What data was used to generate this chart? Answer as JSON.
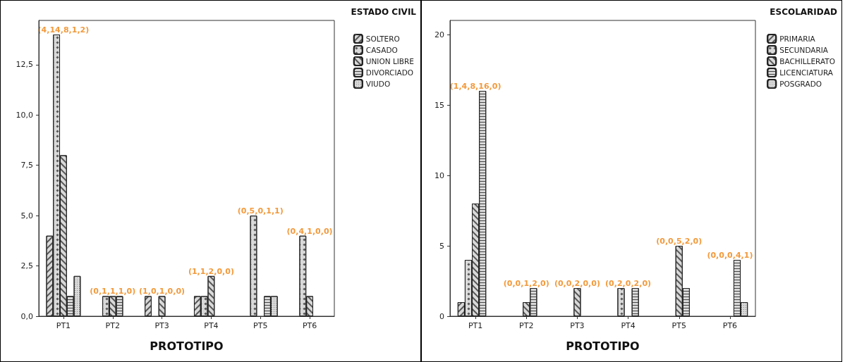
{
  "chart_data": [
    {
      "type": "bar",
      "xlabel": "PROTOTIPO",
      "legend_title": "ESTADO CIVIL",
      "legend": "top right",
      "grid": false,
      "categories": [
        "PT1",
        "PT2",
        "PT3",
        "PT4",
        "PT5",
        "PT6"
      ],
      "ylim": [
        0,
        14.7
      ],
      "yticks": [
        {
          "value": 0,
          "label": "0,0"
        },
        {
          "value": 2.5,
          "label": "2,5"
        },
        {
          "value": 5,
          "label": "5,0"
        },
        {
          "value": 7.5,
          "label": "7,5"
        },
        {
          "value": 10,
          "label": "10,0"
        },
        {
          "value": 12.5,
          "label": "12,5"
        }
      ],
      "series": [
        {
          "name": "SOLTERO",
          "color": "#d9d9d9",
          "values": [
            4,
            0,
            1,
            1,
            0,
            0
          ]
        },
        {
          "name": "CASADO",
          "color": "#d9d9d9",
          "values": [
            14,
            1,
            0,
            1,
            5,
            4
          ]
        },
        {
          "name": "UNION LIBRE",
          "color": "#d9d9d9",
          "values": [
            8,
            1,
            1,
            2,
            0,
            1
          ]
        },
        {
          "name": "DIVORCIADO",
          "color": "#d9d9d9",
          "values": [
            1,
            1,
            0,
            0,
            1,
            0
          ]
        },
        {
          "name": "VIUDO",
          "color": "#d9d9d9",
          "values": [
            2,
            0,
            0,
            0,
            1,
            0
          ]
        }
      ],
      "annotations": [
        "(4,14,8,1,2)",
        "(0,1,1,1,0)",
        "(1,0,1,0,0)",
        "(1,1,2,0,0)",
        "(0,5,0,1,1)",
        "(0,4,1,0,0)"
      ]
    },
    {
      "type": "bar",
      "xlabel": "PROTOTIPO",
      "legend_title": "ESCOLARIDAD",
      "legend": "top right",
      "grid": false,
      "categories": [
        "PT1",
        "PT2",
        "PT3",
        "PT4",
        "PT5",
        "PT6"
      ],
      "ylim": [
        0,
        21
      ],
      "yticks": [
        0,
        5,
        10,
        15,
        20
      ],
      "series": [
        {
          "name": "PRIMARIA",
          "color": "#d9d9d9",
          "values": [
            1,
            0,
            0,
            0,
            0,
            0
          ]
        },
        {
          "name": "SECUNDARIA",
          "color": "#d9d9d9",
          "values": [
            4,
            0,
            0,
            2,
            0,
            0
          ]
        },
        {
          "name": "BACHILLERATO",
          "color": "#d9d9d9",
          "values": [
            8,
            1,
            2,
            0,
            5,
            0
          ]
        },
        {
          "name": "LICENCIATURA",
          "color": "#d9d9d9",
          "values": [
            16,
            2,
            0,
            2,
            2,
            4
          ]
        },
        {
          "name": "POSGRADO",
          "color": "#d9d9d9",
          "values": [
            0,
            0,
            0,
            0,
            0,
            1
          ]
        }
      ],
      "annotations": [
        "(1,4,8,16,0)",
        "(0,0,1,2,0)",
        "(0,0,2,0,0)",
        "(0,2,0,2,0)",
        "(0,0,5,2,0)",
        "(0,0,0,4,1)"
      ]
    }
  ]
}
